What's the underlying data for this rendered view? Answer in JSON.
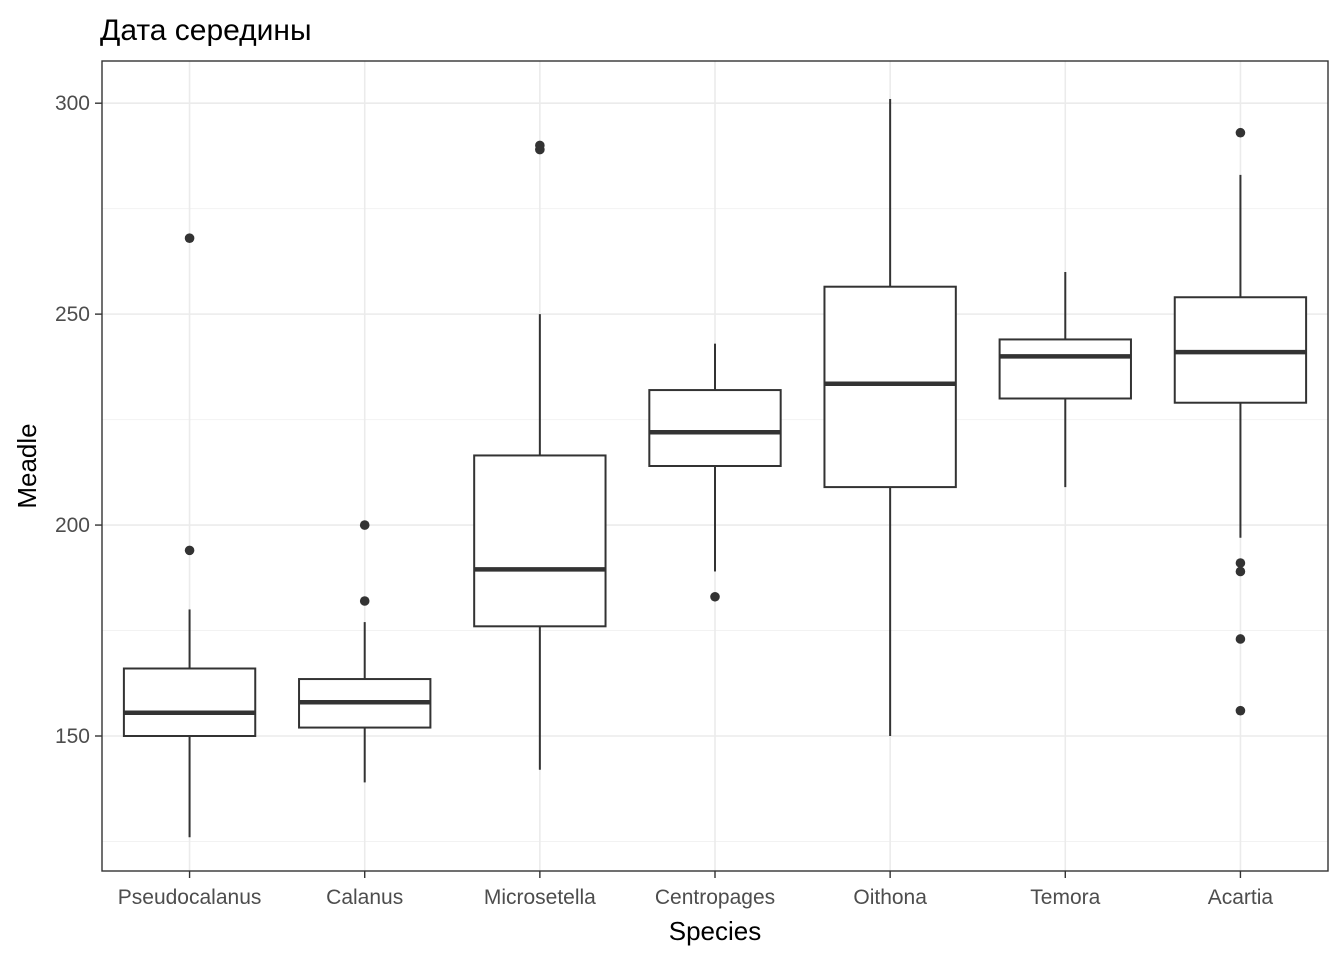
{
  "chart_data": {
    "type": "boxplot",
    "title": "Дата середины",
    "xlabel": "Species",
    "ylabel": "Meadle",
    "ylim": [
      118,
      310
    ],
    "y_ticks": [
      150,
      200,
      250,
      300
    ],
    "grid": true,
    "categories": [
      "Pseudocalanus",
      "Calanus",
      "Microsetella",
      "Centropages",
      "Oithona",
      "Temora",
      "Acartia"
    ],
    "boxes": [
      {
        "name": "Pseudocalanus",
        "lower_whisker": 126,
        "q1": 150,
        "median": 155.5,
        "q3": 166,
        "upper_whisker": 180,
        "outliers": [
          194,
          268
        ]
      },
      {
        "name": "Calanus",
        "lower_whisker": 139,
        "q1": 152,
        "median": 158,
        "q3": 163.5,
        "upper_whisker": 177,
        "outliers": [
          182,
          200
        ]
      },
      {
        "name": "Microsetella",
        "lower_whisker": 142,
        "q1": 176,
        "median": 189.5,
        "q3": 216.5,
        "upper_whisker": 250,
        "outliers": [
          289,
          290
        ]
      },
      {
        "name": "Centropages",
        "lower_whisker": 189,
        "q1": 214,
        "median": 222,
        "q3": 232,
        "upper_whisker": 243,
        "outliers": [
          183
        ]
      },
      {
        "name": "Oithona",
        "lower_whisker": 150,
        "q1": 209,
        "median": 233.5,
        "q3": 256.5,
        "upper_whisker": 301,
        "outliers": []
      },
      {
        "name": "Temora",
        "lower_whisker": 209,
        "q1": 230,
        "median": 240,
        "q3": 244,
        "upper_whisker": 260,
        "outliers": []
      },
      {
        "name": "Acartia",
        "lower_whisker": 197,
        "q1": 229,
        "median": 241,
        "q3": 254,
        "upper_whisker": 283,
        "outliers": [
          156,
          173,
          189,
          191,
          293
        ]
      }
    ],
    "colors": {
      "box_line": "#333333",
      "grid": "#ebebeb",
      "tick_text": "#4d4d4d"
    }
  }
}
